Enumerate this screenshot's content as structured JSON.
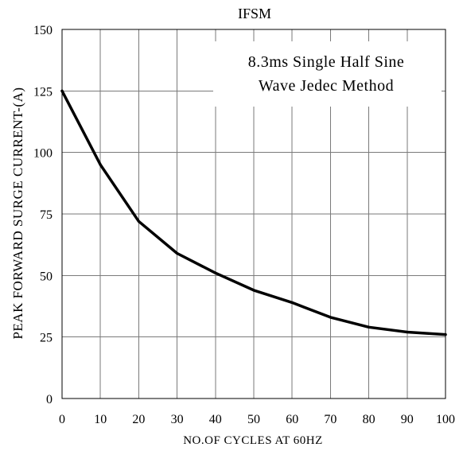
{
  "chart_data": {
    "type": "line",
    "title": "IFSM",
    "xlabel": "NO.OF CYCLES AT 60HZ",
    "ylabel": "PEAK FORWARD SURGE CURRENT-(A)",
    "xlim": [
      0,
      100
    ],
    "ylim": [
      0,
      150
    ],
    "xticks": [
      0,
      10,
      20,
      30,
      40,
      50,
      60,
      70,
      80,
      90,
      100
    ],
    "yticks": [
      0,
      25,
      50,
      75,
      100,
      125,
      150
    ],
    "grid": true,
    "annotation": [
      "8.3ms Single Half Sine",
      "Wave Jedec Method"
    ],
    "series": [
      {
        "color": "#000000",
        "x": [
          0,
          10,
          20,
          30,
          40,
          50,
          60,
          70,
          80,
          90,
          100
        ],
        "y": [
          125,
          95,
          72,
          59,
          51,
          44,
          39,
          33,
          29,
          27,
          26
        ]
      }
    ]
  }
}
